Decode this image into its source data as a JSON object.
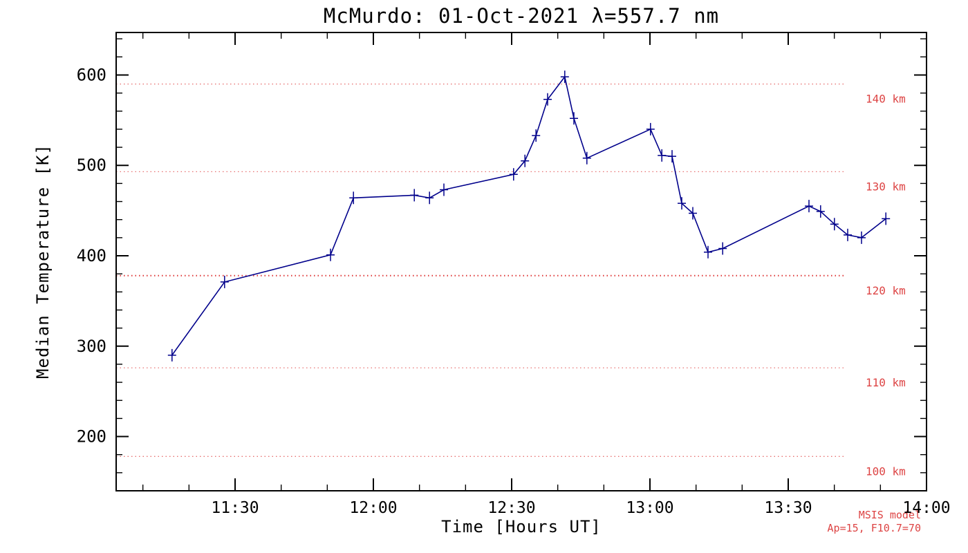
{
  "chart_data": {
    "type": "line",
    "title": "McMurdo: 01-Oct-2021 λ=557.7 nm",
    "xlabel": "Time [Hours UT]",
    "ylabel": "Median Temperature [K]",
    "xlim": [
      11.07,
      14.0
    ],
    "ylim": [
      140,
      647
    ],
    "grid": false,
    "x_ticks": [
      {
        "value": 11.5,
        "label": "11:30"
      },
      {
        "value": 12.0,
        "label": "12:00"
      },
      {
        "value": 12.5,
        "label": "12:30"
      },
      {
        "value": 13.0,
        "label": "13:00"
      },
      {
        "value": 13.5,
        "label": "13:30"
      },
      {
        "value": 14.0,
        "label": "14:00"
      }
    ],
    "x_minor_step_hours": 0.16666667,
    "y_ticks": [
      200,
      300,
      400,
      500,
      600
    ],
    "y_minor_step": 20,
    "series": [
      {
        "name": "median-temperature",
        "color": "#00008b",
        "marker": "plus-errorbar",
        "x": [
          11.272,
          11.462,
          11.845,
          11.928,
          12.148,
          12.203,
          12.255,
          12.507,
          12.548,
          12.588,
          12.63,
          12.692,
          12.725,
          12.772,
          13.002,
          13.043,
          13.08,
          13.115,
          13.155,
          13.21,
          13.263,
          13.575,
          13.617,
          13.667,
          13.715,
          13.765,
          13.853
        ],
        "y": [
          290,
          371,
          401,
          464,
          467,
          464,
          473,
          490,
          505,
          533,
          573,
          598,
          552,
          508,
          540,
          511,
          510,
          458,
          447,
          404,
          408,
          455,
          449,
          435,
          423,
          420,
          441
        ]
      }
    ],
    "msis_reference_lines": [
      {
        "label": "140 km",
        "temp": 590,
        "strong": false
      },
      {
        "label": "130 km",
        "temp": 493,
        "strong": false
      },
      {
        "label": "120 km",
        "temp": 378,
        "strong": true
      },
      {
        "label": "110 km",
        "temp": 276,
        "strong": false
      },
      {
        "label": "100 km",
        "temp": 178,
        "strong": false
      }
    ],
    "msis_line_color": "#dd3333",
    "msis_label_color": "#dd4444",
    "annotations": [
      "MSIS model",
      "Ap=15, F10.7=70"
    ],
    "legend_position": "none"
  }
}
